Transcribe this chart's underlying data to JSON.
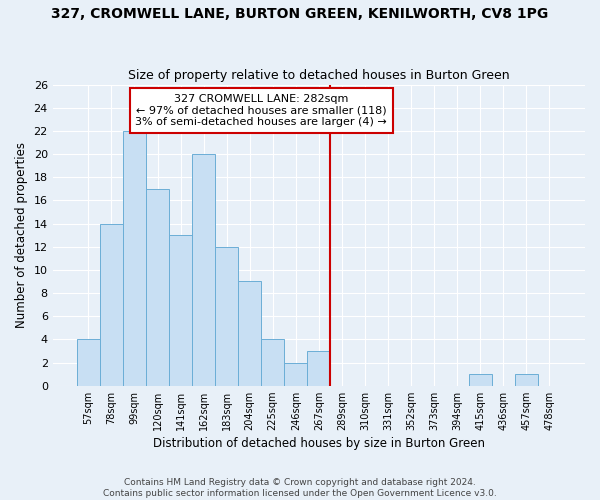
{
  "title": "327, CROMWELL LANE, BURTON GREEN, KENILWORTH, CV8 1PG",
  "subtitle": "Size of property relative to detached houses in Burton Green",
  "xlabel": "Distribution of detached houses by size in Burton Green",
  "ylabel": "Number of detached properties",
  "bin_labels": [
    "57sqm",
    "78sqm",
    "99sqm",
    "120sqm",
    "141sqm",
    "162sqm",
    "183sqm",
    "204sqm",
    "225sqm",
    "246sqm",
    "267sqm",
    "289sqm",
    "310sqm",
    "331sqm",
    "352sqm",
    "373sqm",
    "394sqm",
    "415sqm",
    "436sqm",
    "457sqm",
    "478sqm"
  ],
  "bar_heights": [
    4,
    14,
    22,
    17,
    13,
    20,
    12,
    9,
    4,
    2,
    3,
    0,
    0,
    0,
    0,
    0,
    0,
    1,
    0,
    1,
    0
  ],
  "bar_color": "#c8dff3",
  "bar_edge_color": "#6baed6",
  "vline_color": "#cc0000",
  "annotation_line1": "327 CROMWELL LANE: 282sqm",
  "annotation_line2": "← 97% of detached houses are smaller (118)",
  "annotation_line3": "3% of semi-detached houses are larger (4) →",
  "annotation_box_color": "white",
  "annotation_box_edge": "#cc0000",
  "ylim": [
    0,
    26
  ],
  "yticks": [
    0,
    2,
    4,
    6,
    8,
    10,
    12,
    14,
    16,
    18,
    20,
    22,
    24,
    26
  ],
  "footer_line1": "Contains HM Land Registry data © Crown copyright and database right 2024.",
  "footer_line2": "Contains public sector information licensed under the Open Government Licence v3.0.",
  "bg_color": "#e8f0f8",
  "grid_color": "#ffffff",
  "title_fontsize": 10,
  "subtitle_fontsize": 9
}
